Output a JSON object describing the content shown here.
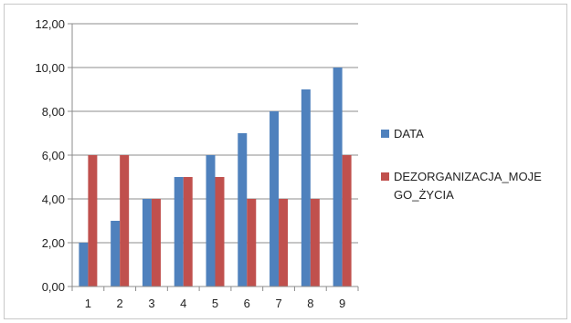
{
  "chart_data": {
    "type": "bar",
    "categories": [
      "1",
      "2",
      "3",
      "4",
      "5",
      "6",
      "7",
      "8",
      "9"
    ],
    "series": [
      {
        "name": "DATA",
        "color": "#4F81BD",
        "values": [
          2,
          3,
          4,
          5,
          6,
          7,
          8,
          9,
          10
        ]
      },
      {
        "name": "DEZORGANIZACJA_MOJEGO_ŻYCIA",
        "legend_lines": [
          "DEZORGANIZACJA_MOJE",
          "GO_ŻYCIA"
        ],
        "color": "#C0504D",
        "values": [
          6,
          6,
          4,
          5,
          5,
          4,
          4,
          4,
          6
        ]
      }
    ],
    "ylim": [
      0,
      12
    ],
    "yticks": [
      "0,00",
      "2,00",
      "4,00",
      "6,00",
      "8,00",
      "10,00",
      "12,00"
    ],
    "grid": true,
    "legend": "right"
  }
}
